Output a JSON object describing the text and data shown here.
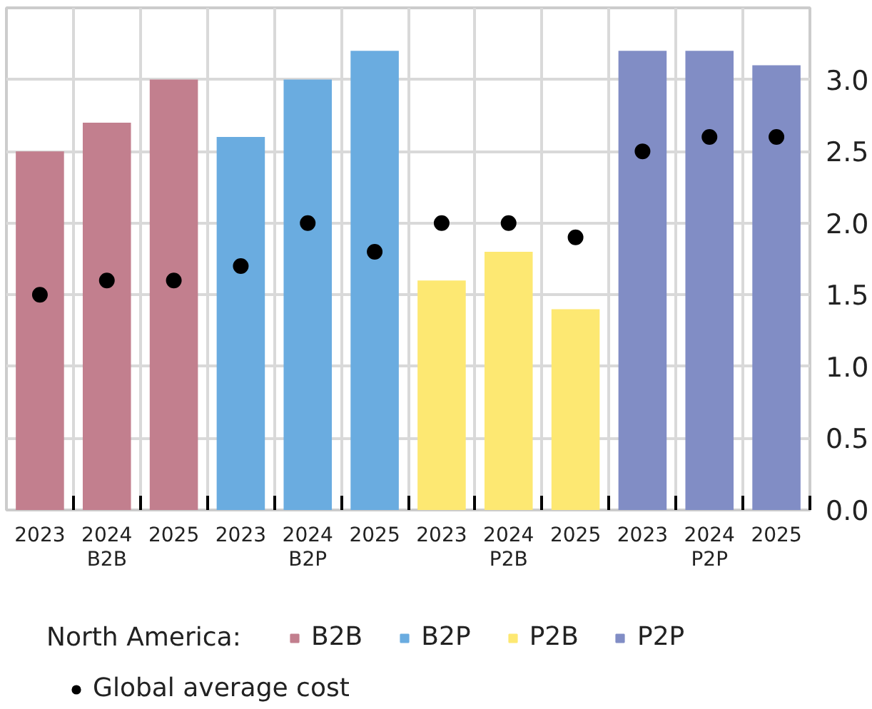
{
  "chart_data": {
    "type": "bar",
    "categories": [
      "2023",
      "2024",
      "2025",
      "2023",
      "2024",
      "2025",
      "2023",
      "2024",
      "2025",
      "2023",
      "2024",
      "2025"
    ],
    "legend_title": "North America:",
    "series": [
      {
        "name": "B2B",
        "color": "#c27f8e",
        "values": [
          2.5,
          2.7,
          3.0,
          null,
          null,
          null,
          null,
          null,
          null,
          null,
          null,
          null
        ]
      },
      {
        "name": "B2P",
        "color": "#6aace0",
        "values": [
          null,
          null,
          null,
          2.6,
          3.0,
          3.2,
          null,
          null,
          null,
          null,
          null,
          null
        ]
      },
      {
        "name": "P2B",
        "color": "#fde872",
        "values": [
          null,
          null,
          null,
          null,
          null,
          null,
          1.6,
          1.8,
          1.4,
          null,
          null,
          null
        ]
      },
      {
        "name": "P2P",
        "color": "#818dc5",
        "values": [
          null,
          null,
          null,
          null,
          null,
          null,
          null,
          null,
          null,
          3.2,
          3.2,
          3.1
        ]
      },
      {
        "name": "Global average cost",
        "type": "scatter",
        "color": "#000000",
        "marker": "circle",
        "values": [
          1.5,
          1.6,
          1.6,
          1.7,
          2.0,
          1.8,
          2.0,
          2.0,
          1.9,
          2.5,
          2.6,
          2.6
        ]
      }
    ],
    "ylim": [
      0,
      3.5
    ],
    "yticks": [
      {
        "value": 0,
        "label": "0.0"
      },
      {
        "value": 0.5,
        "label": "0.5"
      },
      {
        "value": 1,
        "label": "1.0"
      },
      {
        "value": 1.5,
        "label": "1.5"
      },
      {
        "value": 2,
        "label": "2.0"
      },
      {
        "value": 2.5,
        "label": "2.5"
      },
      {
        "value": 3,
        "label": "3.0"
      }
    ],
    "grid": true,
    "legend": "bottom"
  }
}
